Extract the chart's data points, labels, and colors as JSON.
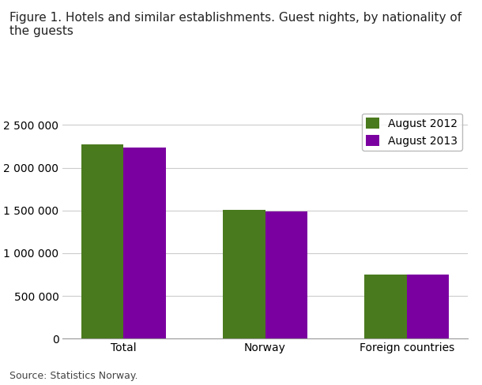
{
  "title": "Figure 1. Hotels and similar establishments. Guest nights, by nationality of\nthe guests",
  "categories": [
    "Total",
    "Norway",
    "Foreign countries"
  ],
  "series": [
    {
      "label": "August 2012",
      "values": [
        2270000,
        1510000,
        755000
      ],
      "color": "#4a7a1e"
    },
    {
      "label": "August 2013",
      "values": [
        2240000,
        1490000,
        750000
      ],
      "color": "#7b00a0"
    }
  ],
  "ylim": [
    0,
    2700000
  ],
  "yticks": [
    0,
    500000,
    1000000,
    1500000,
    2000000,
    2500000
  ],
  "ytick_labels": [
    "0",
    "500 000",
    "1 000 000",
    "1 500 000",
    "2 000 000",
    "2 500 000"
  ],
  "source": "Source: Statistics Norway.",
  "background_color": "#ffffff",
  "grid_color": "#cccccc",
  "bar_width": 0.3,
  "legend_loc": "upper right",
  "title_fontsize": 11,
  "tick_fontsize": 10,
  "source_fontsize": 9
}
